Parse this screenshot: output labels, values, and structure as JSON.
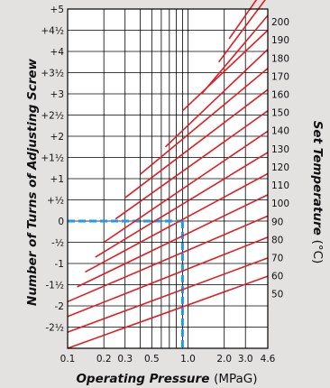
{
  "chart_data": {
    "type": "line",
    "title": "",
    "xlabel": "Operating Pressure",
    "xlabel_unit": "(MPaG)",
    "ylabel": "Number of Turns of Adjusting Screw",
    "y2label": "Set Temperature",
    "y2label_unit": "(°C)",
    "x_scale": "log",
    "xlim": [
      0.1,
      4.6
    ],
    "ylim": [
      -3,
      5
    ],
    "y2lim": [
      20,
      207
    ],
    "x_ticks": [
      0.1,
      0.2,
      0.3,
      0.5,
      1.0,
      2.0,
      3.0,
      4.6
    ],
    "x_tick_labels": [
      "0.1",
      "0.2",
      "0.3",
      "0.5",
      "1.0",
      "2.0",
      "3.0",
      "4.6"
    ],
    "x_grid": [
      0.1,
      0.2,
      0.3,
      0.4,
      0.5,
      0.6,
      0.7,
      0.8,
      0.9,
      1.0,
      2.0,
      3.0,
      4.6
    ],
    "y_ticks": [
      5,
      4.5,
      4,
      3.5,
      3,
      2.5,
      2,
      1.5,
      1,
      0.5,
      0,
      -0.5,
      -1,
      -1.5,
      -2,
      -2.5
    ],
    "y_tick_labels": [
      "+5",
      "+4½",
      "+4",
      "+3½",
      "+3",
      "+2½",
      "+2",
      "+1½",
      "+1",
      "+½",
      "0",
      "-½",
      "-1",
      "-1½",
      "-2",
      "-2½"
    ],
    "y2_ticks": [
      200,
      190,
      180,
      170,
      160,
      150,
      140,
      130,
      120,
      110,
      100,
      90,
      80,
      70,
      60,
      50
    ],
    "y2_tick_labels": [
      "200",
      "190",
      "180",
      "170",
      "160",
      "150",
      "140",
      "130",
      "120",
      "110",
      "100",
      "90",
      "80",
      "70",
      "60",
      "50"
    ],
    "grid": true,
    "series": [
      {
        "temp": 50,
        "x": [
          0.1,
          4.6
        ],
        "y": [
          -3.0,
          -1.3
        ]
      },
      {
        "temp": 60,
        "x": [
          0.1,
          4.6
        ],
        "y": [
          -2.62,
          -0.87
        ]
      },
      {
        "temp": 70,
        "x": [
          0.1,
          4.6
        ],
        "y": [
          -2.25,
          -0.38
        ]
      },
      {
        "temp": 80,
        "x": [
          0.1,
          4.6
        ],
        "y": [
          -1.9,
          0.12
        ]
      },
      {
        "temp": 90,
        "x": [
          0.12,
          4.6
        ],
        "y": [
          -1.55,
          0.62
        ]
      },
      {
        "temp": 100,
        "x": [
          0.14,
          4.6
        ],
        "y": [
          -1.2,
          1.12
        ]
      },
      {
        "temp": 110,
        "x": [
          0.17,
          4.6
        ],
        "y": [
          -0.85,
          1.62
        ]
      },
      {
        "temp": 120,
        "x": [
          0.2,
          4.6
        ],
        "y": [
          -0.5,
          2.12
        ]
      },
      {
        "temp": 130,
        "x": [
          0.25,
          4.6
        ],
        "y": [
          0.05,
          2.6
        ]
      },
      {
        "temp": 140,
        "x": [
          0.3,
          4.6
        ],
        "y": [
          0.55,
          3.1
        ]
      },
      {
        "temp": 150,
        "x": [
          0.4,
          4.6
        ],
        "y": [
          1.1,
          3.6
        ]
      },
      {
        "temp": 160,
        "x": [
          0.65,
          4.6
        ],
        "y": [
          1.75,
          4.05
        ]
      },
      {
        "temp": 170,
        "x": [
          0.9,
          4.6
        ],
        "y": [
          2.6,
          4.5
        ]
      },
      {
        "temp": 180,
        "x": [
          1.3,
          4.6
        ],
        "y": [
          3.0,
          4.85
        ]
      },
      {
        "temp": 190,
        "x": [
          1.8,
          4.6
        ],
        "y": [
          3.75,
          5.3
        ]
      },
      {
        "temp": 200,
        "x": [
          2.2,
          4.6
        ],
        "y": [
          4.3,
          5.6
        ]
      }
    ],
    "reference_point": {
      "x": 0.9,
      "y": 0
    },
    "colors": {
      "series": "#e01e24",
      "reference": "#1e9be6",
      "plot_background": "#ffffff",
      "page_background": "#e4e1e1",
      "grid": "#000000"
    }
  }
}
